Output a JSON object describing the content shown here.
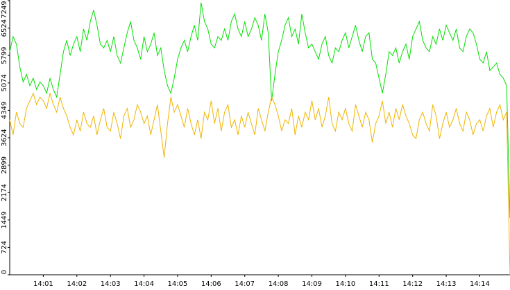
{
  "chart_data": {
    "type": "line",
    "x": [
      0,
      0.1,
      0.2,
      0.3,
      0.4,
      0.5,
      0.6,
      0.7,
      0.8,
      0.9,
      1,
      1.1,
      1.2,
      1.3,
      1.4,
      1.5,
      1.6,
      1.7,
      1.8,
      1.9,
      2,
      2.1,
      2.2,
      2.3,
      2.4,
      2.5,
      2.6,
      2.7,
      2.8,
      2.9,
      3,
      3.1,
      3.2,
      3.3,
      3.4,
      3.5,
      3.6,
      3.7,
      3.8,
      3.9,
      4,
      4.1,
      4.2,
      4.3,
      4.4,
      4.5,
      4.6,
      4.7,
      4.8,
      4.9,
      5,
      5.1,
      5.2,
      5.3,
      5.4,
      5.5,
      5.6,
      5.7,
      5.8,
      5.9,
      6,
      6.1,
      6.2,
      6.3,
      6.4,
      6.5,
      6.6,
      6.7,
      6.8,
      6.9,
      7,
      7.1,
      7.2,
      7.3,
      7.4,
      7.5,
      7.6,
      7.7,
      7.8,
      7.9,
      8,
      8.1,
      8.2,
      8.3,
      8.4,
      8.5,
      8.6,
      8.7,
      8.8,
      8.9,
      9,
      9.1,
      9.2,
      9.3,
      9.4,
      9.5,
      9.6,
      9.7,
      9.8,
      9.9,
      10,
      10.1,
      10.2,
      10.3,
      10.4,
      10.5,
      10.6,
      10.7,
      10.8,
      10.9,
      11,
      11.1,
      11.2,
      11.3,
      11.4,
      11.5,
      11.6,
      11.7,
      11.8,
      11.9,
      12,
      12.1,
      12.2,
      12.3,
      12.4,
      12.5,
      12.6,
      12.7,
      12.8,
      12.9,
      13,
      13.1,
      13.2,
      13.3,
      13.4,
      13.5,
      13.6,
      13.7,
      13.8,
      13.9,
      14,
      14.1,
      14.2,
      14.3,
      14.4,
      14.5,
      14.6,
      14.7,
      14.8,
      14.9
    ],
    "series": [
      {
        "color": "#00e000",
        "values": [
          5900,
          6300,
          6100,
          5500,
          5100,
          5300,
          5000,
          5200,
          4900,
          5100,
          5000,
          4800,
          5200,
          4900,
          4700,
          5300,
          5900,
          6200,
          5800,
          6100,
          6300,
          5900,
          6500,
          6200,
          6700,
          7000,
          6600,
          6100,
          6000,
          6200,
          5900,
          6300,
          5800,
          5600,
          6000,
          6400,
          6700,
          6200,
          6000,
          5700,
          6300,
          5900,
          6100,
          6400,
          5800,
          6000,
          5400,
          5000,
          4800,
          5200,
          5700,
          6000,
          6200,
          5900,
          6300,
          6600,
          6200,
          7200,
          6700,
          6500,
          6100,
          6000,
          6300,
          6200,
          6500,
          6200,
          6700,
          6900,
          6500,
          6300,
          6700,
          6300,
          6500,
          6800,
          6600,
          6200,
          6900,
          6400,
          4600,
          5300,
          5900,
          6200,
          6600,
          6800,
          6300,
          6500,
          6100,
          6900,
          6400,
          6000,
          6100,
          5900,
          5700,
          6100,
          6300,
          5800,
          5600,
          6000,
          5900,
          6200,
          6400,
          6000,
          6300,
          6600,
          6200,
          5900,
          6300,
          6400,
          5700,
          5600,
          5200,
          4800,
          5300,
          5900,
          5800,
          6000,
          5600,
          5900,
          6100,
          5700,
          6300,
          6500,
          6700,
          6200,
          6000,
          5900,
          6300,
          6100,
          6500,
          6200,
          6600,
          6400,
          6200,
          6500,
          6000,
          5900,
          6300,
          6500,
          6400,
          6100,
          5700,
          5600,
          5900,
          5400,
          5500,
          5600,
          5300,
          5200,
          5000,
          1500
        ]
      },
      {
        "color": "#f0b400",
        "values": [
          4100,
          3700,
          4300,
          4000,
          3900,
          4400,
          4600,
          4800,
          4500,
          4700,
          4600,
          4400,
          4800,
          4500,
          4300,
          4700,
          4400,
          4200,
          3900,
          3700,
          4100,
          3800,
          4300,
          4000,
          3900,
          4200,
          3700,
          4100,
          4400,
          3900,
          3800,
          4300,
          4000,
          3600,
          4200,
          4400,
          3900,
          4100,
          4500,
          4300,
          4000,
          4200,
          3700,
          4100,
          4500,
          3800,
          3100,
          4000,
          4700,
          4300,
          4500,
          4200,
          3900,
          4400,
          4000,
          3700,
          4100,
          3600,
          4300,
          4100,
          4600,
          4000,
          4400,
          3800,
          4300,
          4500,
          3900,
          4100,
          3700,
          4200,
          3900,
          4300,
          4000,
          3700,
          4400,
          4100,
          3800,
          4300,
          4700,
          4500,
          4200,
          3800,
          4100,
          4000,
          4400,
          3700,
          4200,
          3900,
          4300,
          4100,
          4600,
          4100,
          4400,
          3900,
          4200,
          4700,
          4000,
          3800,
          4300,
          4100,
          4400,
          4000,
          3800,
          4500,
          4200,
          3900,
          4300,
          4100,
          3500,
          4000,
          4200,
          4600,
          4000,
          4300,
          3900,
          4400,
          4100,
          4500,
          4200,
          4000,
          3700,
          3600,
          4100,
          4300,
          4000,
          3800,
          4500,
          4200,
          3600,
          4000,
          4300,
          3900,
          4100,
          4400,
          4000,
          3800,
          4300,
          4100,
          3700,
          4000,
          4100,
          3800,
          4200,
          4400,
          3900,
          4300,
          4500,
          4100,
          4300,
          0
        ]
      }
    ],
    "xlim": [
      0,
      14.9
    ],
    "xticks": [
      {
        "value": 1,
        "label": "14:01"
      },
      {
        "value": 2,
        "label": "14:02"
      },
      {
        "value": 3,
        "label": "14:03"
      },
      {
        "value": 4,
        "label": "14:04"
      },
      {
        "value": 5,
        "label": "14:05"
      },
      {
        "value": 6,
        "label": "14:06"
      },
      {
        "value": 7,
        "label": "14:07"
      },
      {
        "value": 8,
        "label": "14:08"
      },
      {
        "value": 9,
        "label": "14:09"
      },
      {
        "value": 10,
        "label": "14:10"
      },
      {
        "value": 11,
        "label": "14:11"
      },
      {
        "value": 12,
        "label": "14:12"
      },
      {
        "value": 13,
        "label": "14:13"
      },
      {
        "value": 14,
        "label": "14:14"
      }
    ],
    "ylim": [
      0,
      7249
    ],
    "yticks": [
      0,
      724,
      1449,
      2174,
      2899,
      3624,
      4349,
      5074,
      5799,
      6524,
      7249
    ]
  }
}
